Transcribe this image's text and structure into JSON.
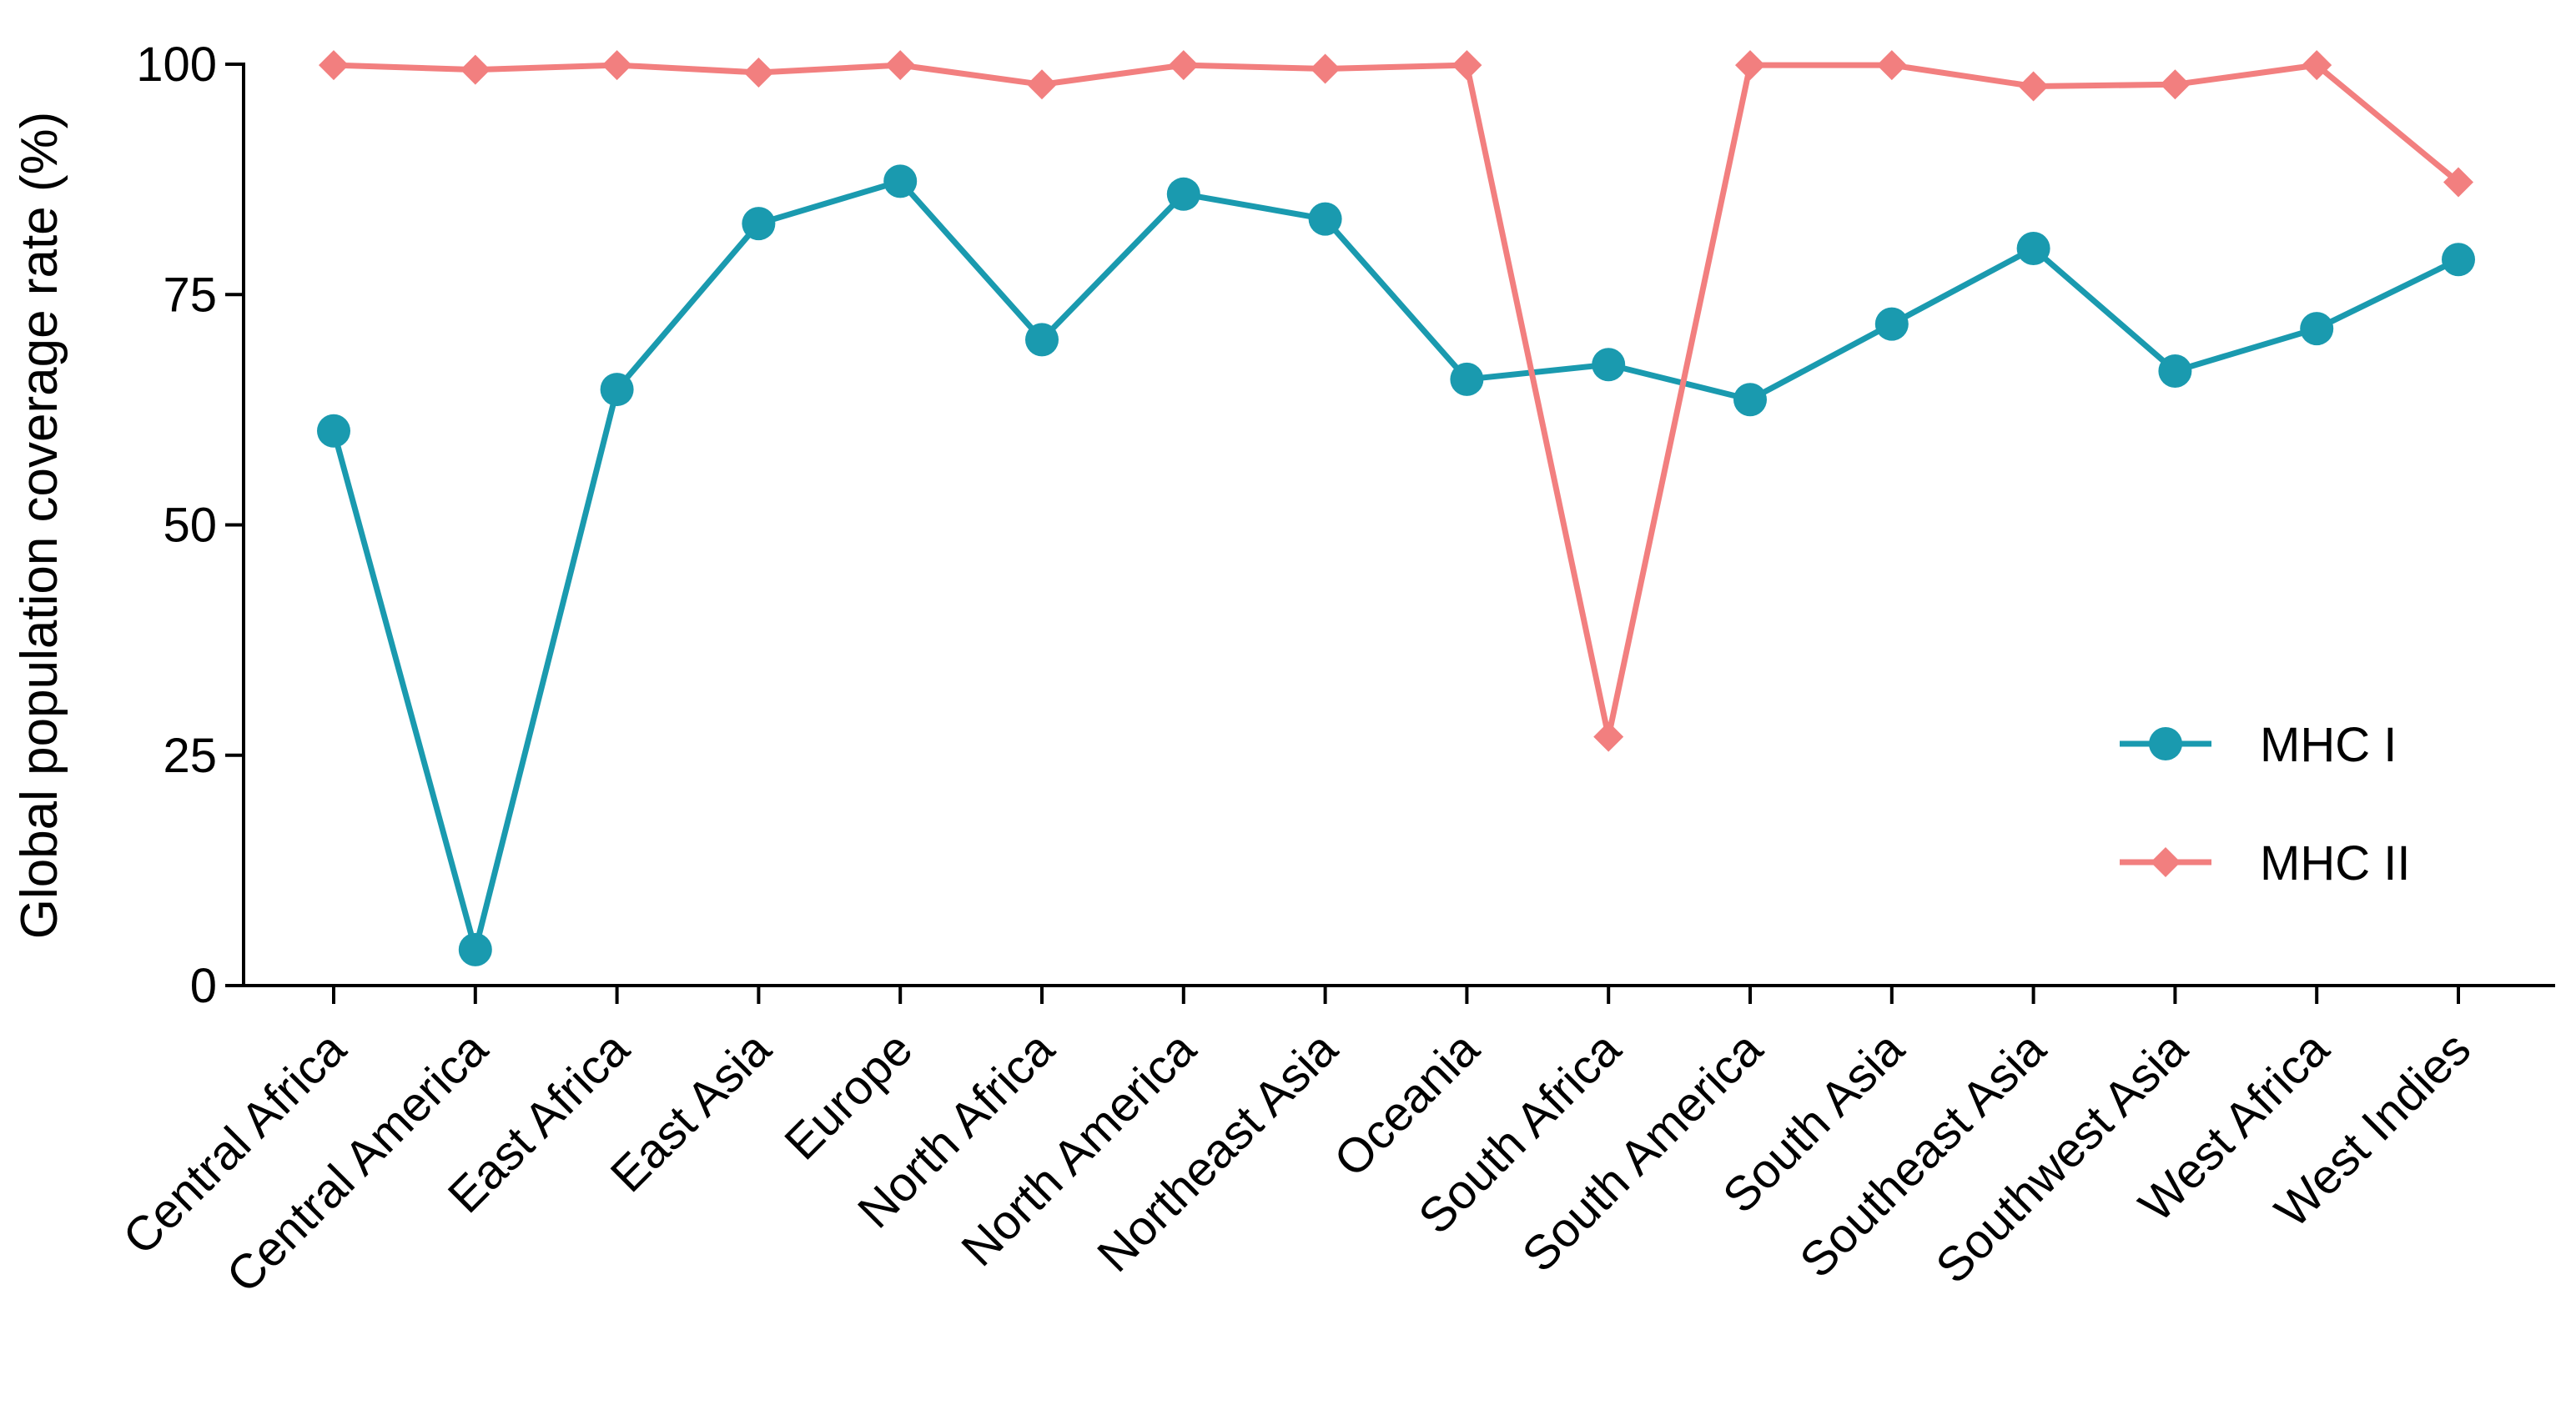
{
  "chart_data": {
    "type": "line",
    "y_label": "Global population coverage rate (%)",
    "categories": [
      "Central Africa",
      "Central America",
      "East Africa",
      "East Asia",
      "Europe",
      "North Africa",
      "North America",
      "Northeast Asia",
      "Oceania",
      "South Africa",
      "South America",
      "South Asia",
      "Southeast Asia",
      "Southwest Asia",
      "West Africa",
      "West Indies"
    ],
    "series": [
      {
        "name": "MHC I",
        "color": "#1a9aaf",
        "marker": "circle",
        "values": [
          60.2,
          3.9,
          64.7,
          82.7,
          87.3,
          70.1,
          85.9,
          83.2,
          65.8,
          67.4,
          63.6,
          71.8,
          80.0,
          66.7,
          71.3,
          78.8
        ]
      },
      {
        "name": "MHC II",
        "color": "#f27f7f",
        "marker": "diamond",
        "values": [
          99.9,
          99.4,
          99.9,
          99.1,
          99.9,
          97.8,
          99.9,
          99.5,
          99.9,
          27.0,
          99.9,
          99.9,
          97.6,
          97.8,
          99.9,
          87.2
        ]
      }
    ],
    "ylim": [
      0,
      100
    ],
    "yticks": [
      0,
      25,
      50,
      75,
      100
    ],
    "legend": "right"
  }
}
